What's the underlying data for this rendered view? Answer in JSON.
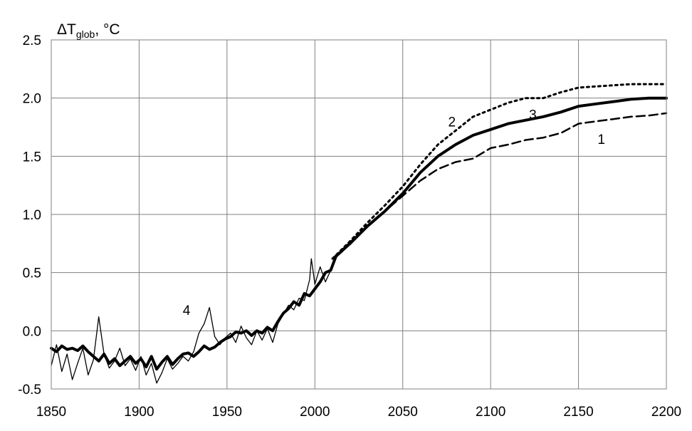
{
  "chart_data": {
    "type": "line",
    "ylabel": {
      "delta": "Δ",
      "main": "T",
      "sub": "glob",
      "unit": ", °C"
    },
    "xlim": [
      1850,
      2200
    ],
    "ylim": [
      -0.5,
      2.5
    ],
    "x_ticks": [
      "1850",
      "1900",
      "1950",
      "2000",
      "2050",
      "2100",
      "2150",
      "2200"
    ],
    "y_ticks": [
      "-0.5",
      "0.0",
      "0.5",
      "1.0",
      "1.5",
      "2.0",
      "2.5"
    ],
    "grid": true,
    "colors": {
      "line": "#000000",
      "grid": "#808080"
    },
    "series": [
      {
        "label": "1",
        "style": "dashed",
        "label_at": [
          2163,
          1.65
        ],
        "x": [
          2010,
          2020,
          2030,
          2040,
          2050,
          2060,
          2070,
          2080,
          2090,
          2100,
          2110,
          2120,
          2130,
          2140,
          2150,
          2160,
          2170,
          2180,
          2190,
          2200
        ],
        "y": [
          0.62,
          0.76,
          0.9,
          1.03,
          1.16,
          1.29,
          1.39,
          1.45,
          1.48,
          1.57,
          1.6,
          1.64,
          1.66,
          1.7,
          1.78,
          1.8,
          1.82,
          1.84,
          1.85,
          1.87
        ]
      },
      {
        "label": "2",
        "style": "dotted",
        "label_at": [
          2078,
          1.8
        ],
        "x": [
          2010,
          2020,
          2030,
          2040,
          2050,
          2060,
          2070,
          2080,
          2090,
          2100,
          2110,
          2120,
          2130,
          2140,
          2150,
          2160,
          2170,
          2180,
          2190,
          2200
        ],
        "y": [
          0.62,
          0.77,
          0.93,
          1.08,
          1.24,
          1.43,
          1.6,
          1.72,
          1.84,
          1.9,
          1.96,
          2.0,
          2.0,
          2.05,
          2.09,
          2.1,
          2.11,
          2.12,
          2.12,
          2.12
        ]
      },
      {
        "label": "3",
        "style": "thick",
        "label_at": [
          2124,
          1.86
        ],
        "x": [
          1850,
          1853,
          1856,
          1859,
          1862,
          1865,
          1868,
          1871,
          1874,
          1877,
          1880,
          1883,
          1886,
          1889,
          1892,
          1895,
          1898,
          1901,
          1904,
          1907,
          1910,
          1913,
          1916,
          1919,
          1922,
          1925,
          1928,
          1931,
          1934,
          1937,
          1940,
          1943,
          1946,
          1949,
          1952,
          1955,
          1958,
          1961,
          1964,
          1967,
          1970,
          1973,
          1976,
          1979,
          1982,
          1985,
          1988,
          1991,
          1994,
          1997,
          2000,
          2003,
          2006,
          2009,
          2012,
          2020,
          2030,
          2040,
          2050,
          2060,
          2070,
          2080,
          2090,
          2100,
          2110,
          2120,
          2130,
          2140,
          2150,
          2160,
          2170,
          2180,
          2190,
          2200
        ],
        "y": [
          -0.15,
          -0.18,
          -0.13,
          -0.16,
          -0.15,
          -0.17,
          -0.13,
          -0.18,
          -0.22,
          -0.26,
          -0.2,
          -0.28,
          -0.24,
          -0.3,
          -0.26,
          -0.22,
          -0.28,
          -0.24,
          -0.31,
          -0.22,
          -0.33,
          -0.27,
          -0.22,
          -0.29,
          -0.24,
          -0.2,
          -0.19,
          -0.22,
          -0.18,
          -0.13,
          -0.16,
          -0.14,
          -0.1,
          -0.07,
          -0.05,
          -0.01,
          -0.02,
          0.0,
          -0.04,
          0.0,
          -0.02,
          0.03,
          0.0,
          0.08,
          0.15,
          0.19,
          0.25,
          0.22,
          0.32,
          0.3,
          0.36,
          0.42,
          0.5,
          0.52,
          0.64,
          0.75,
          0.9,
          1.03,
          1.18,
          1.36,
          1.5,
          1.6,
          1.68,
          1.73,
          1.78,
          1.81,
          1.84,
          1.88,
          1.93,
          1.95,
          1.97,
          1.99,
          2.0,
          2.0
        ]
      },
      {
        "label": "4",
        "style": "thin",
        "label_at": [
          1927,
          0.18
        ],
        "x": [
          1850,
          1853,
          1856,
          1859,
          1862,
          1865,
          1868,
          1871,
          1874,
          1877,
          1880,
          1883,
          1886,
          1889,
          1892,
          1895,
          1898,
          1901,
          1904,
          1907,
          1910,
          1913,
          1916,
          1919,
          1922,
          1925,
          1928,
          1931,
          1934,
          1937,
          1940,
          1943,
          1946,
          1949,
          1952,
          1955,
          1958,
          1961,
          1964,
          1967,
          1970,
          1973,
          1976,
          1979,
          1982,
          1985,
          1988,
          1991,
          1994,
          1997,
          1998,
          2000,
          2003,
          2006,
          2009,
          2012
        ],
        "y": [
          -0.3,
          -0.12,
          -0.35,
          -0.2,
          -0.42,
          -0.28,
          -0.15,
          -0.38,
          -0.25,
          0.12,
          -0.2,
          -0.32,
          -0.26,
          -0.15,
          -0.3,
          -0.24,
          -0.34,
          -0.22,
          -0.38,
          -0.28,
          -0.45,
          -0.36,
          -0.24,
          -0.33,
          -0.28,
          -0.22,
          -0.26,
          -0.18,
          -0.02,
          0.06,
          0.2,
          -0.05,
          -0.12,
          -0.06,
          -0.02,
          -0.1,
          0.04,
          -0.06,
          -0.12,
          0.0,
          -0.08,
          0.02,
          -0.1,
          0.06,
          0.14,
          0.22,
          0.18,
          0.28,
          0.26,
          0.44,
          0.62,
          0.4,
          0.55,
          0.42,
          0.52,
          0.62
        ]
      }
    ]
  }
}
